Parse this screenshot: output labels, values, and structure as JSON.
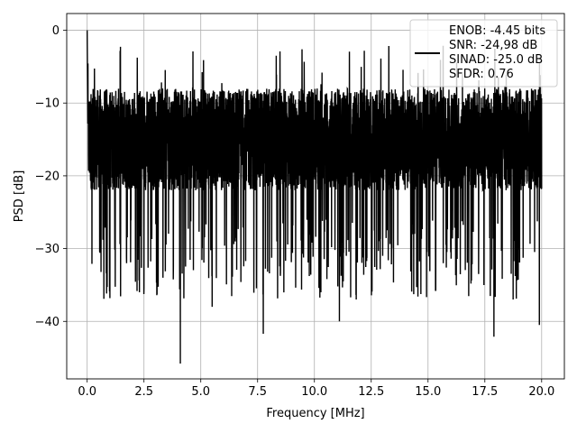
{
  "chart_data": {
    "type": "line",
    "title": "",
    "xlabel": "Frequency [MHz]",
    "ylabel": "PSD [dB]",
    "xlim": [
      -0.9,
      21.0
    ],
    "ylim": [
      -47.9,
      2.3
    ],
    "xticks": [
      0.0,
      2.5,
      5.0,
      7.5,
      10.0,
      12.5,
      15.0,
      17.5,
      20.0
    ],
    "xtick_labels": [
      "0.0",
      "2.5",
      "5.0",
      "7.5",
      "10.0",
      "12.5",
      "15.0",
      "17.5",
      "20.0"
    ],
    "yticks": [
      0,
      -10,
      -20,
      -30,
      -40
    ],
    "ytick_labels": [
      "0",
      "−10",
      "−20",
      "−30",
      "−40"
    ],
    "grid": true,
    "legend_position": "top-right",
    "legend_lines": [
      "ENOB: -4.45 bits",
      "SNR: -24,98 dB",
      "SINAD: -25.0 dB",
      "SFDR: 0.76"
    ],
    "series": [
      {
        "color": "#000000",
        "x_range": [
          0.0,
          20.0
        ],
        "approx_noise_band_db": [
          -22,
          -8
        ],
        "peak_db": 0.0,
        "peak_at": 0.0,
        "notable_dips": [
          {
            "x": 4.1,
            "y": -45.8
          },
          {
            "x": 7.75,
            "y": -41.7
          },
          {
            "x": 11.1,
            "y": -40.0
          },
          {
            "x": 17.9,
            "y": -42.1
          },
          {
            "x": 19.9,
            "y": -40.5
          },
          {
            "x": 5.5,
            "y": -38.0
          },
          {
            "x": 1.0,
            "y": -36.8
          },
          {
            "x": 2.3,
            "y": -36.0
          }
        ]
      }
    ]
  }
}
